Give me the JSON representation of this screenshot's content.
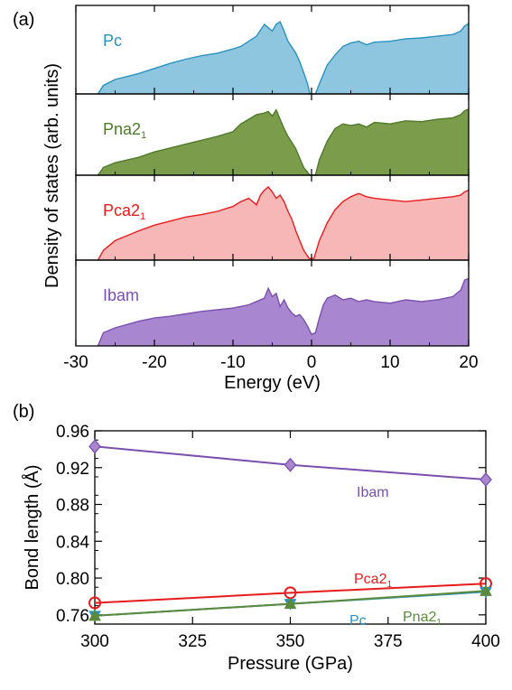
{
  "chart_data": [
    {
      "panel_label": "(a)",
      "type": "area",
      "xlabel": "Energy (eV)",
      "ylabel": "Density of states (arb. units)",
      "xlim": [
        -30,
        20
      ],
      "xticks": [
        -30,
        -20,
        -10,
        0,
        10,
        20
      ],
      "stacked_panels": true,
      "series": [
        {
          "name": "Pc",
          "color": "#2a92be",
          "fill": "#8fc6df",
          "x": [
            -27.2,
            -26.5,
            -25,
            -22,
            -20,
            -18,
            -16,
            -14,
            -12,
            -10,
            -9,
            -8,
            -7,
            -6.5,
            -6,
            -5.5,
            -5,
            -4.5,
            -4,
            -3.5,
            -3,
            -2.5,
            -2,
            -1.5,
            -1,
            -0.5,
            -0.2,
            0.5,
            1,
            2,
            3,
            4,
            5,
            6,
            7,
            8,
            10,
            12,
            14,
            16,
            18,
            19,
            19.5,
            20
          ],
          "values": [
            0.0,
            0.1,
            0.17,
            0.24,
            0.3,
            0.36,
            0.41,
            0.45,
            0.48,
            0.53,
            0.56,
            0.62,
            0.68,
            0.75,
            0.82,
            0.78,
            0.74,
            0.82,
            0.85,
            0.74,
            0.62,
            0.55,
            0.48,
            0.38,
            0.25,
            0.12,
            0.0,
            0.0,
            0.12,
            0.34,
            0.46,
            0.56,
            0.6,
            0.62,
            0.58,
            0.61,
            0.62,
            0.65,
            0.66,
            0.68,
            0.7,
            0.74,
            0.8,
            0.83
          ]
        },
        {
          "name": "Pna2₁",
          "color": "#4e7a2a",
          "fill": "#7b9d4b",
          "x": [
            -27.2,
            -26.5,
            -25,
            -22,
            -20,
            -18,
            -16,
            -14,
            -12,
            -10,
            -9,
            -8,
            -7,
            -6,
            -5.5,
            -5,
            -4.5,
            -4,
            -3.5,
            -3,
            -2.5,
            -2,
            -1.5,
            -1,
            -0.2,
            0.5,
            1,
            2,
            3,
            4,
            5,
            6,
            7,
            8,
            10,
            12,
            14,
            16,
            18,
            19,
            19.5,
            20
          ],
          "values": [
            0.0,
            0.1,
            0.16,
            0.23,
            0.3,
            0.35,
            0.4,
            0.45,
            0.5,
            0.56,
            0.66,
            0.72,
            0.78,
            0.8,
            0.82,
            0.76,
            0.84,
            0.72,
            0.6,
            0.5,
            0.42,
            0.34,
            0.22,
            0.1,
            0.0,
            0.0,
            0.2,
            0.44,
            0.6,
            0.66,
            0.64,
            0.66,
            0.62,
            0.68,
            0.66,
            0.7,
            0.69,
            0.72,
            0.74,
            0.78,
            0.83,
            0.85
          ]
        },
        {
          "name": "Pca2₁",
          "color": "#e61c1c",
          "fill": "#f8b7b7",
          "x": [
            -27.2,
            -26.5,
            -25,
            -22,
            -20,
            -18,
            -16,
            -14,
            -12,
            -10,
            -9,
            -8,
            -7,
            -6.5,
            -6,
            -5.5,
            -5,
            -4.5,
            -4,
            -3.5,
            -3,
            -2.5,
            -2,
            -1.5,
            -1,
            -0.3,
            0.3,
            1,
            2,
            3,
            4,
            5,
            6,
            7,
            8,
            10,
            12,
            14,
            16,
            18,
            19,
            19.5,
            20
          ],
          "values": [
            0.0,
            0.12,
            0.24,
            0.36,
            0.43,
            0.48,
            0.53,
            0.56,
            0.6,
            0.66,
            0.72,
            0.76,
            0.68,
            0.8,
            0.86,
            0.9,
            0.84,
            0.76,
            0.8,
            0.72,
            0.6,
            0.5,
            0.36,
            0.24,
            0.12,
            0.02,
            0.02,
            0.24,
            0.46,
            0.62,
            0.72,
            0.78,
            0.82,
            0.78,
            0.76,
            0.74,
            0.72,
            0.74,
            0.76,
            0.78,
            0.8,
            0.84,
            0.86
          ]
        },
        {
          "name": "Ibam",
          "color": "#7a4fb0",
          "fill": "#a887d0",
          "x": [
            -27.2,
            -26.5,
            -25,
            -22,
            -20,
            -18,
            -16,
            -14,
            -12,
            -10,
            -8,
            -6,
            -5.5,
            -5,
            -4.5,
            -4,
            -3.5,
            -3,
            -2.5,
            -2,
            -1.5,
            -1,
            -0.5,
            0,
            0.5,
            1,
            1.5,
            2,
            3,
            4,
            5,
            6,
            7,
            8,
            10,
            12,
            14,
            16,
            18,
            19,
            19.5,
            20
          ],
          "values": [
            0.0,
            0.16,
            0.22,
            0.3,
            0.34,
            0.36,
            0.39,
            0.42,
            0.44,
            0.46,
            0.5,
            0.58,
            0.7,
            0.6,
            0.64,
            0.48,
            0.56,
            0.46,
            0.4,
            0.36,
            0.38,
            0.32,
            0.24,
            0.14,
            0.16,
            0.34,
            0.5,
            0.58,
            0.62,
            0.56,
            0.58,
            0.54,
            0.56,
            0.54,
            0.52,
            0.56,
            0.54,
            0.56,
            0.6,
            0.68,
            0.8,
            0.82
          ]
        }
      ]
    },
    {
      "panel_label": "(b)",
      "type": "line",
      "xlabel": "Pressure (GPa)",
      "ylabel": "Bond length (Å)",
      "xlim": [
        300,
        400
      ],
      "ylim": [
        0.75,
        0.96
      ],
      "xticks": [
        300,
        325,
        350,
        375,
        400
      ],
      "yticks": [
        0.76,
        0.8,
        0.84,
        0.88,
        0.92,
        0.96
      ],
      "x": [
        300,
        350,
        400
      ],
      "series": [
        {
          "name": "Ibam",
          "color": "#7a4fb0",
          "marker": "diamond",
          "values": [
            0.943,
            0.923,
            0.907
          ]
        },
        {
          "name": "Pca2₁",
          "color": "#e61c1c",
          "marker": "circle",
          "values": [
            0.773,
            0.784,
            0.794
          ]
        },
        {
          "name": "Pc",
          "color": "#2a92be",
          "marker": "triangle-down",
          "values": [
            0.759,
            0.772,
            0.785
          ]
        },
        {
          "name": "Pna2₁",
          "color": "#5a8a3a",
          "marker": "triangle-up",
          "values": [
            0.759,
            0.772,
            0.786
          ]
        }
      ]
    }
  ]
}
